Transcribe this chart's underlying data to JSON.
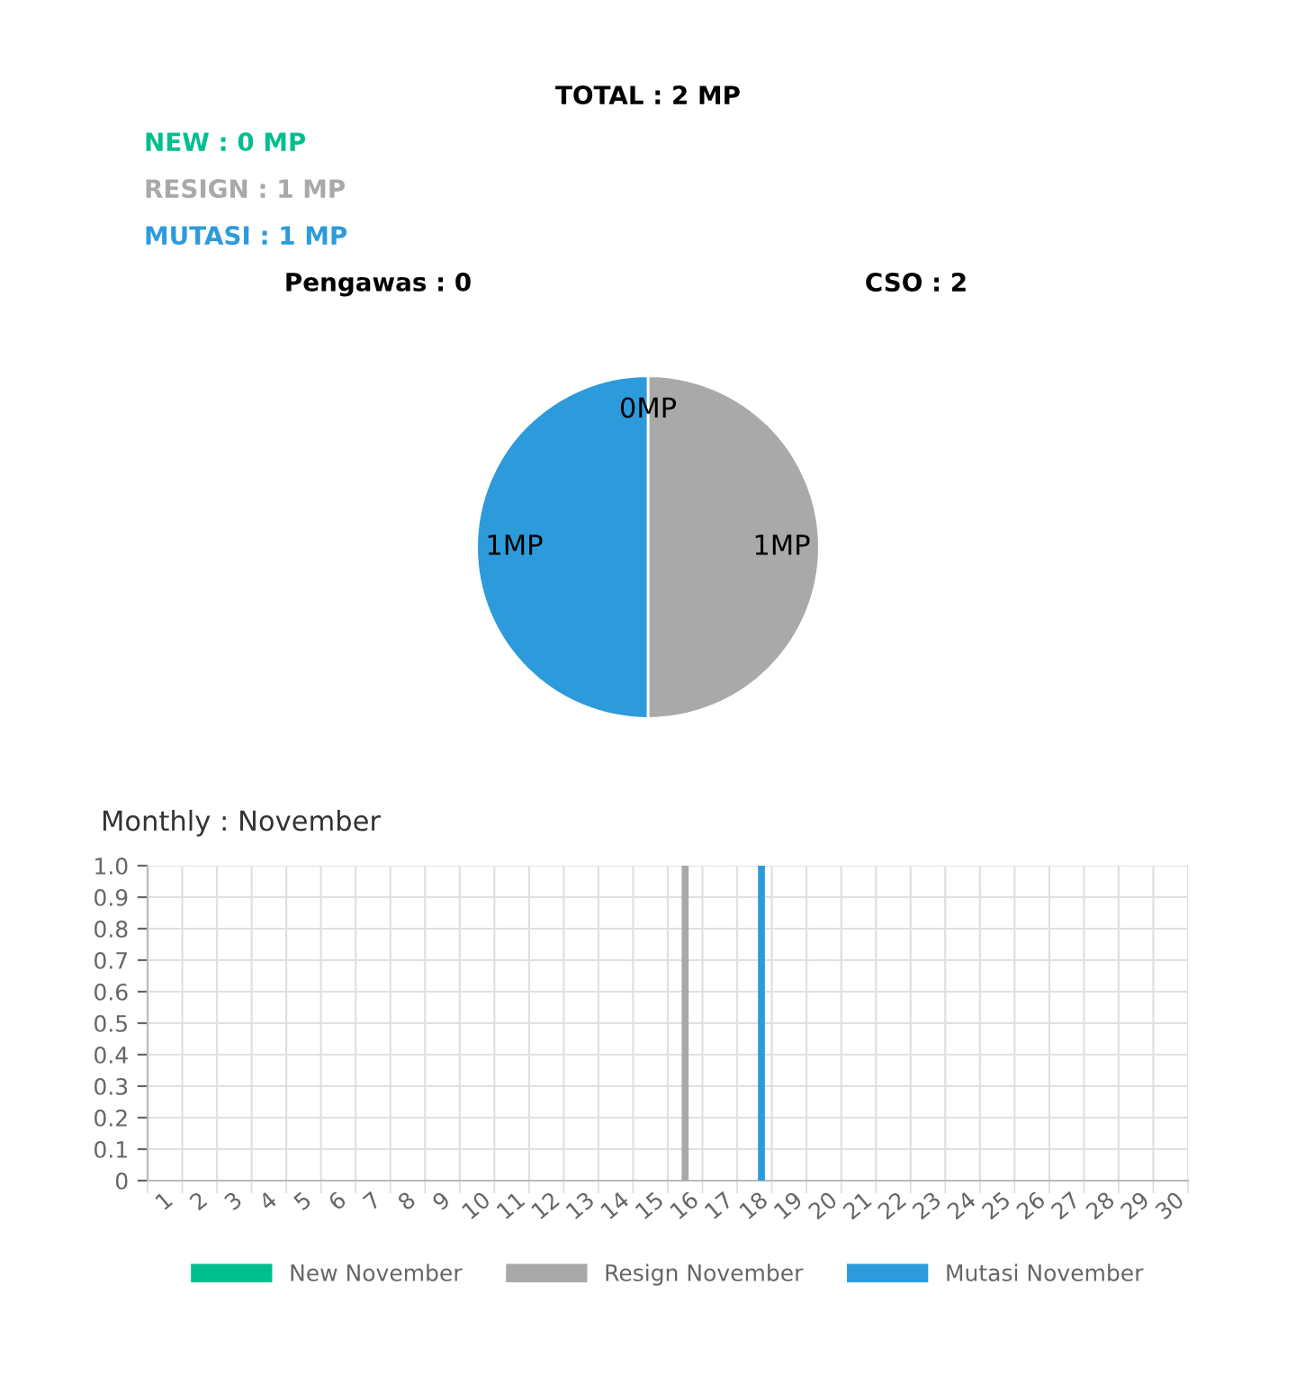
{
  "chart_data": [
    {
      "type": "pie",
      "title": "TOTAL : 2 MP",
      "categories": [
        null,
        null,
        null
      ],
      "values": [
        0,
        1,
        1
      ],
      "colors": [
        "#00bf8f",
        "#a9a9a9",
        "#2d9bdb"
      ],
      "value_labels": [
        "0MP",
        "1MP",
        "1MP"
      ],
      "annotations": [
        "NEW : 0 MP",
        "RESIGN : 1 MP",
        "MUTASI : 1 MP",
        "Pengawas : 0",
        "CSO : 2"
      ]
    },
    {
      "type": "bar",
      "title": "Monthly : November",
      "categories": [
        "1",
        "2",
        "3",
        "4",
        "5",
        "6",
        "7",
        "8",
        "9",
        "10",
        "11",
        "12",
        "13",
        "14",
        "15",
        "16",
        "17",
        "18",
        "19",
        "20",
        "21",
        "22",
        "23",
        "24",
        "25",
        "26",
        "27",
        "28",
        "29",
        "30"
      ],
      "series": [
        {
          "name": "New November",
          "color": "#00bf8f",
          "values": [
            0,
            0,
            0,
            0,
            0,
            0,
            0,
            0,
            0,
            0,
            0,
            0,
            0,
            0,
            0,
            0,
            0,
            0,
            0,
            0,
            0,
            0,
            0,
            0,
            0,
            0,
            0,
            0,
            0,
            0
          ]
        },
        {
          "name": "Resign November",
          "color": "#a9a9a9",
          "values": [
            0,
            0,
            0,
            0,
            0,
            0,
            0,
            0,
            0,
            0,
            0,
            0,
            0,
            0,
            0,
            1,
            0,
            0,
            0,
            0,
            0,
            0,
            0,
            0,
            0,
            0,
            0,
            0,
            0,
            0
          ]
        },
        {
          "name": "Mutasi November",
          "color": "#2d9bdb",
          "values": [
            0,
            0,
            0,
            0,
            0,
            0,
            0,
            0,
            0,
            0,
            0,
            0,
            0,
            0,
            0,
            0,
            0,
            1,
            0,
            0,
            0,
            0,
            0,
            0,
            0,
            0,
            0,
            0,
            0,
            0
          ]
        }
      ],
      "ylim": [
        0,
        1.0
      ],
      "yticks": [
        0,
        0.1,
        0.2,
        0.3,
        0.4,
        0.5,
        0.6,
        0.7,
        0.8,
        0.9,
        {
          "value": 1.0,
          "label": "1.0"
        }
      ],
      "grid": true,
      "legend": "bottom"
    }
  ]
}
